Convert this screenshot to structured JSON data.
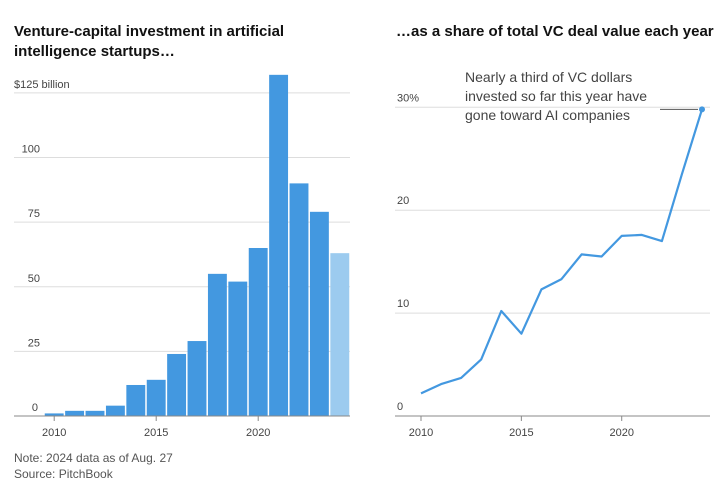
{
  "chart_data": [
    {
      "type": "bar",
      "title": "Venture-capital investment in artificial intelligence startups…",
      "categories": [
        "2010",
        "2011",
        "2012",
        "2013",
        "2014",
        "2015",
        "2016",
        "2017",
        "2018",
        "2019",
        "2020",
        "2021",
        "2022",
        "2023",
        "2024"
      ],
      "values": [
        1,
        2,
        2,
        4,
        12,
        14,
        24,
        29,
        55,
        52,
        65,
        132,
        90,
        79,
        63
      ],
      "partial_year": "2024",
      "ylim": [
        0,
        130
      ],
      "yticks": [
        {
          "value": 0,
          "label": "0"
        },
        {
          "value": 25,
          "label": "25"
        },
        {
          "value": 50,
          "label": "50"
        },
        {
          "value": 75,
          "label": "75"
        },
        {
          "value": 100,
          "label": "100"
        },
        {
          "value": 125,
          "label": "$125 billion"
        }
      ],
      "xticks": [
        "2010",
        "2015",
        "2020"
      ],
      "grid": true,
      "colors": {
        "bar": "#4398e0",
        "partial_bar": "#9ccbef",
        "grid": "#dddddd"
      }
    },
    {
      "type": "line",
      "title": "…as a share of total VC deal value each year",
      "x": [
        "2010",
        "2011",
        "2012",
        "2013",
        "2014",
        "2015",
        "2016",
        "2017",
        "2018",
        "2019",
        "2020",
        "2021",
        "2022",
        "2023",
        "2024"
      ],
      "values": [
        2.2,
        3.1,
        3.7,
        5.5,
        10.2,
        8.0,
        12.3,
        13.3,
        15.7,
        15.5,
        17.5,
        17.6,
        17.0,
        23.5,
        29.8
      ],
      "ylim": [
        0,
        31
      ],
      "yticks": [
        {
          "value": 0,
          "label": "0"
        },
        {
          "value": 10,
          "label": "10"
        },
        {
          "value": 20,
          "label": "20"
        },
        {
          "value": 30,
          "label": "30%"
        }
      ],
      "xticks": [
        "2010",
        "2015",
        "2020"
      ],
      "grid": true,
      "annotation": {
        "lines": [
          "Nearly a third of VC dollars",
          "invested so far this year have",
          "gone toward AI companies"
        ],
        "target": "2024"
      },
      "colors": {
        "line": "#4398e0",
        "grid": "#dddddd"
      }
    }
  ],
  "notes": {
    "note": "Note: 2024 data as of Aug. 27",
    "source": "Source: PitchBook"
  }
}
